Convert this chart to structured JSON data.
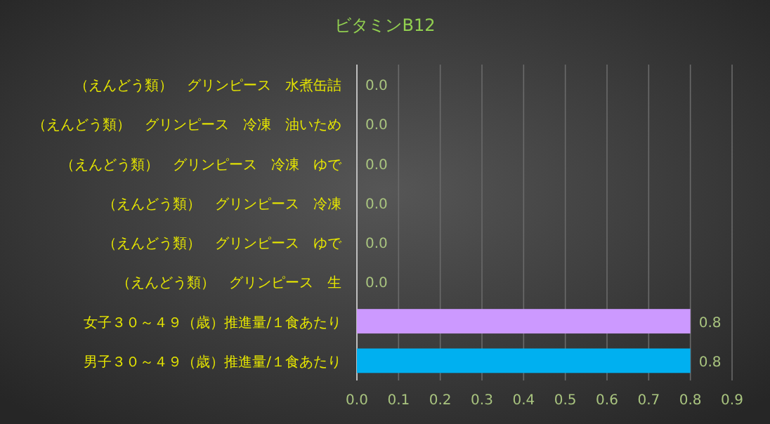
{
  "chart_data": {
    "type": "bar",
    "orientation": "horizontal",
    "title": "ビタミンB12",
    "categories": [
      "（えんどう類）　グリンピース　水煮缶詰",
      "（えんどう類）　グリンピース　冷凍　油いため",
      "（えんどう類）　グリンピース　冷凍　ゆで",
      "（えんどう類）　グリンピース　冷凍",
      "（えんどう類）　グリンピース　ゆで",
      "（えんどう類）　グリンピース　生",
      "女子３０～４９（歳）推進量/１食あたり",
      "男子３０～４９（歳）推進量/１食あたり"
    ],
    "values": [
      0,
      0,
      0,
      0,
      0,
      0,
      0.8,
      0.8
    ],
    "value_labels": [
      "0.0",
      "0.0",
      "0.0",
      "0.0",
      "0.0",
      "0.0",
      "0.8",
      "0.8"
    ],
    "colors": [
      "#00b0f0",
      "#00b0f0",
      "#00b0f0",
      "#00b0f0",
      "#00b0f0",
      "#00b0f0",
      "#cc99ff",
      "#00b0f0"
    ],
    "xlim": [
      0,
      0.9
    ],
    "xticks": [
      {
        "value": 0,
        "label": "0.0"
      },
      0.1,
      0.2,
      0.3,
      0.4,
      0.5,
      0.6,
      0.7,
      0.8,
      0.9
    ],
    "grid": "x"
  }
}
